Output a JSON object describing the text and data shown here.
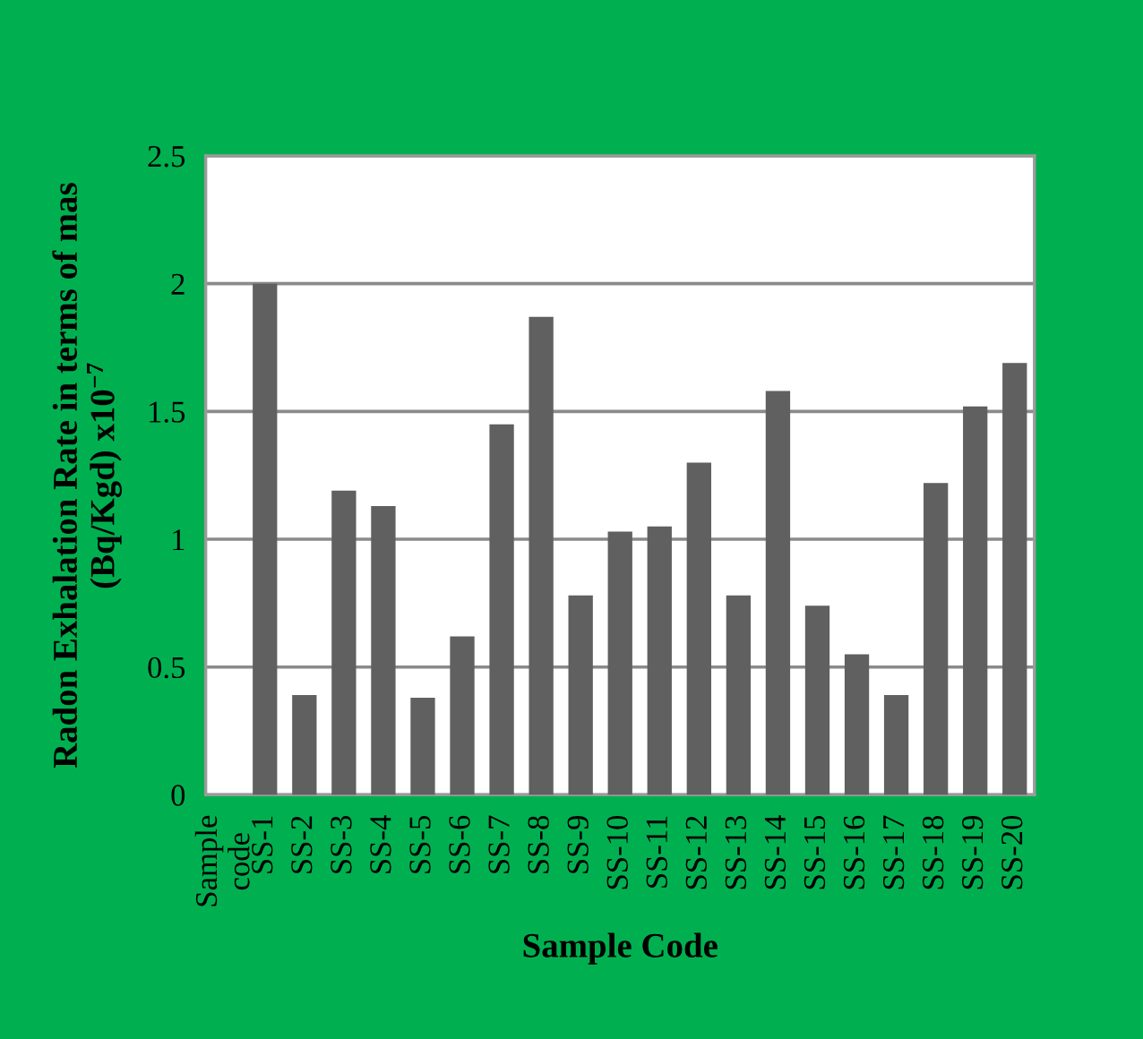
{
  "chart_data": {
    "type": "bar",
    "xlabel": "Sample Code",
    "ylabel": "Radon Exhalation Rate in terms of mas\n(Bq/Kgd) x10$^{−7}$",
    "categories": [
      "Sample\ncode",
      "SS-1",
      "SS-2",
      "SS-3",
      "SS-4",
      "SS-5",
      "SS-6",
      "SS-7",
      "SS-8",
      "SS-9",
      "SS-10",
      "SS-11",
      "SS-12",
      "SS-13",
      "SS-14",
      "SS-15",
      "SS-16",
      "SS-17",
      "SS-18",
      "SS-19",
      "SS-20"
    ],
    "values": [
      null,
      2.0,
      0.39,
      1.19,
      1.13,
      0.38,
      0.62,
      1.45,
      1.87,
      0.78,
      1.03,
      1.05,
      1.3,
      0.78,
      1.58,
      0.74,
      0.55,
      0.39,
      1.22,
      1.52,
      1.69
    ],
    "color": "#606060",
    "ylim": [
      0,
      2.5
    ],
    "yticks": [
      0,
      0.5,
      1,
      1.5,
      2,
      2.5
    ],
    "grid": "y",
    "legend": false
  }
}
